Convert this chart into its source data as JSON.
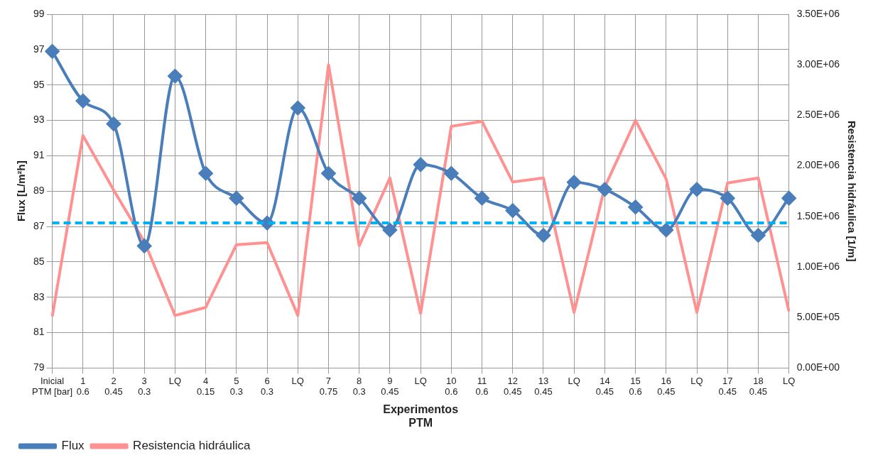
{
  "chart_data": {
    "type": "line",
    "xlabel": "Experimentos\nPTM",
    "ylabel": "Flux [L/m²h]",
    "y2label": "Resistencia hidráulica [1/m]",
    "categories": [
      "Inicial\nPTM [bar]",
      "1\n0.6",
      "2\n0.45",
      "3\n0.3",
      "LQ",
      "4\n0.15",
      "5\n0.3",
      "6\n0.3",
      "LQ",
      "7\n0.75",
      "8\n0.3",
      "9\n0.45",
      "LQ",
      "10\n0.6",
      "11\n0.6",
      "12\n0.45",
      "13\n0.45",
      "LQ",
      "14\n0.45",
      "15\n0.6",
      "16\n0.45",
      "LQ",
      "17\n0.45",
      "18\n0.45",
      "LQ"
    ],
    "series": [
      {
        "name": "Flux",
        "color": "#4a7ebb",
        "marker": "diamond",
        "values": [
          96.9,
          94.1,
          92.8,
          85.9,
          95.5,
          90.0,
          88.6,
          87.2,
          93.7,
          90.0,
          88.6,
          86.8,
          90.5,
          90.0,
          88.6,
          87.9,
          86.5,
          89.5,
          89.1,
          88.1,
          86.8,
          89.1,
          88.6,
          86.5,
          88.6
        ]
      },
      {
        "name": "Resistencia hidráulica",
        "color": "#ff9191",
        "axis": "y2",
        "marker": "none",
        "values": [
          510000,
          2300000,
          1760000,
          1250000,
          520000,
          600000,
          1220000,
          1240000,
          520000,
          3000000,
          1210000,
          1880000,
          540000,
          2390000,
          2440000,
          1840000,
          1880000,
          550000,
          1790000,
          2450000,
          1870000,
          550000,
          1830000,
          1880000,
          560000
        ]
      }
    ],
    "ylim": [
      79,
      99
    ],
    "yticks": [
      79,
      81,
      83,
      85,
      87,
      89,
      91,
      93,
      95,
      97,
      99
    ],
    "y2lim": [
      0,
      3500000
    ],
    "y2ticks": [
      {
        "value": 0,
        "label": "0.00E+00"
      },
      {
        "value": 500000,
        "label": "5.00E+05"
      },
      {
        "value": 1000000,
        "label": "1.00E+06"
      },
      {
        "value": 1500000,
        "label": "1.50E+06"
      },
      {
        "value": 2000000,
        "label": "2.00E+06"
      },
      {
        "value": 2500000,
        "label": "2.50E+06"
      },
      {
        "value": 3000000,
        "label": "3.00E+06"
      },
      {
        "value": 3500000,
        "label": "3.50E+06"
      }
    ],
    "ref_lines": [
      {
        "axis": "y",
        "value": 87.2,
        "color": "#00b0f0",
        "line_style": "dashed"
      }
    ],
    "grid": true,
    "legend": "bottom left"
  }
}
